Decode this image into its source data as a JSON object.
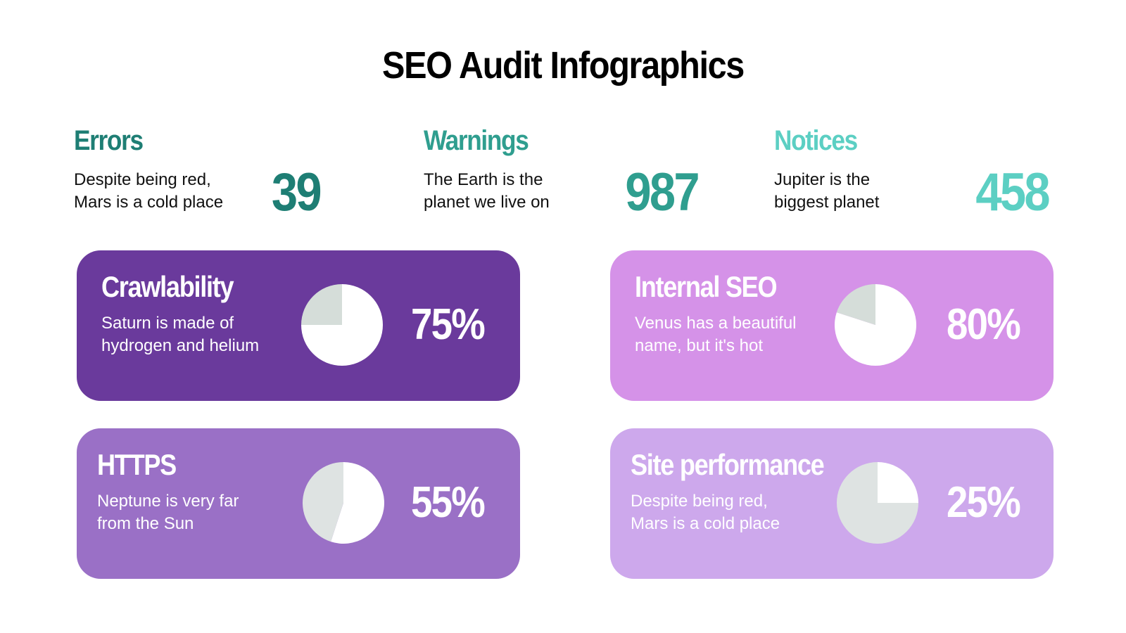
{
  "title": "SEO Audit Infographics",
  "stats": [
    {
      "label": "Errors",
      "description_lines": [
        "Despite being red,",
        "Mars is a cold place"
      ],
      "value": "39",
      "color": "#1E7E74"
    },
    {
      "label": "Warnings",
      "description_lines": [
        "The Earth is the",
        "planet we live on"
      ],
      "value": "987",
      "color": "#2F9E8F"
    },
    {
      "label": "Notices",
      "description_lines": [
        "Jupiter is the",
        "biggest planet"
      ],
      "value": "458",
      "color": "#5CCFC3"
    }
  ],
  "chart_data": [
    {
      "type": "pie",
      "title": "Crawlability",
      "description_lines": [
        "Saturn is made of",
        "hydrogen and helium"
      ],
      "value": 75,
      "label": "75%",
      "card_color": "#6A3A9C"
    },
    {
      "type": "pie",
      "title": "Internal SEO",
      "description_lines": [
        "Venus has a beautiful",
        "name, but it's hot"
      ],
      "value": 80,
      "label": "80%",
      "card_color": "#D592E8"
    },
    {
      "type": "pie",
      "title": "HTTPS",
      "description_lines": [
        "Neptune is very far",
        "from the Sun"
      ],
      "value": 55,
      "label": "55%",
      "card_color": "#9A70C6"
    },
    {
      "type": "pie",
      "title": "Site performance",
      "description_lines": [
        "Despite being red,",
        "Mars is a cold place"
      ],
      "value": 25,
      "label": "25%",
      "card_color": "#CDA8EC"
    }
  ],
  "colors": {
    "pie_filled": "#FFFFFF",
    "pie_remainder": "#D5DDD9",
    "pie_remainder_light": "#DEE3E2",
    "text_dark": "#000000"
  }
}
